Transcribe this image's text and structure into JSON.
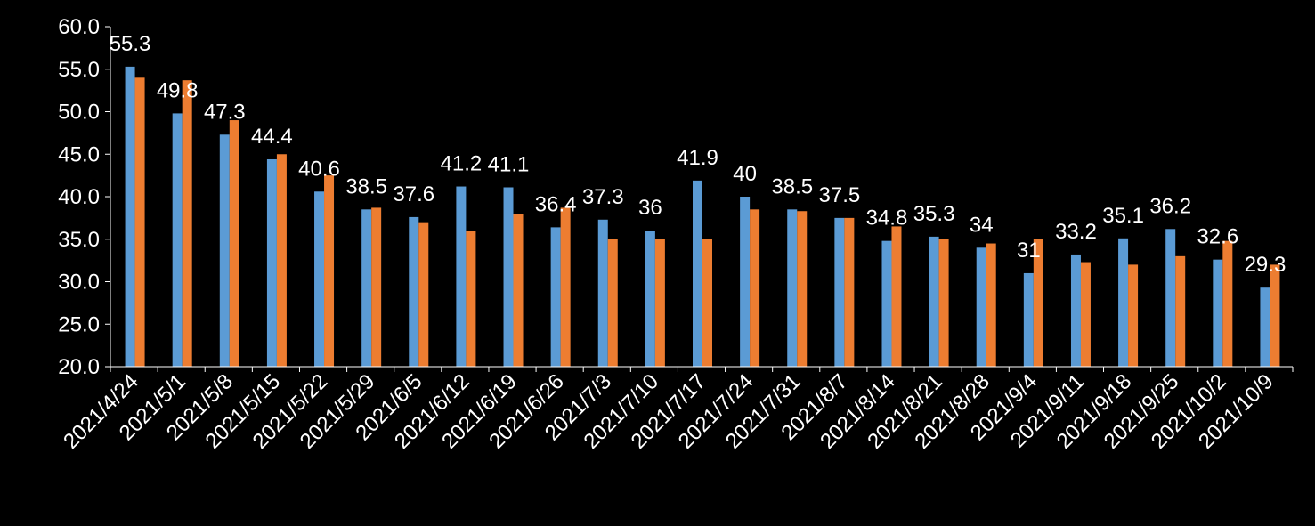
{
  "chart_data": {
    "type": "bar",
    "categories": [
      "2021/4/24",
      "2021/5/1",
      "2021/5/8",
      "2021/5/15",
      "2021/5/22",
      "2021/5/29",
      "2021/6/5",
      "2021/6/12",
      "2021/6/19",
      "2021/6/26",
      "2021/7/3",
      "2021/7/10",
      "2021/7/17",
      "2021/7/24",
      "2021/7/31",
      "2021/8/7",
      "2021/8/14",
      "2021/8/21",
      "2021/8/28",
      "2021/9/4",
      "2021/9/11",
      "2021/9/18",
      "2021/9/25",
      "2021/10/2",
      "2021/10/9"
    ],
    "series": [
      {
        "values": [
          55.3,
          49.8,
          47.3,
          44.4,
          40.6,
          38.5,
          37.6,
          41.2,
          41.1,
          36.4,
          37.3,
          36.0,
          41.9,
          40.0,
          38.5,
          37.5,
          34.8,
          35.3,
          34.0,
          31.0,
          33.2,
          35.1,
          36.2,
          32.6,
          29.3
        ],
        "color": "#5b9bd5",
        "labeled": true
      },
      {
        "values": [
          54.0,
          53.7,
          49.0,
          45.0,
          42.5,
          38.7,
          37.0,
          36.0,
          38.0,
          38.7,
          35.0,
          35.0,
          35.0,
          38.5,
          38.3,
          37.5,
          36.5,
          35.0,
          34.5,
          35.0,
          32.3,
          32.0,
          33.0,
          34.8,
          32.0
        ],
        "color": "#ed7d31",
        "labeled": false
      }
    ],
    "ylim": [
      20.0,
      60.0
    ],
    "yticks": [
      "20.0",
      "25.0",
      "30.0",
      "35.0",
      "40.0",
      "45.0",
      "50.0",
      "55.0",
      "60.0"
    ],
    "grid": false,
    "xlabel": "",
    "ylabel": "",
    "title": ""
  }
}
